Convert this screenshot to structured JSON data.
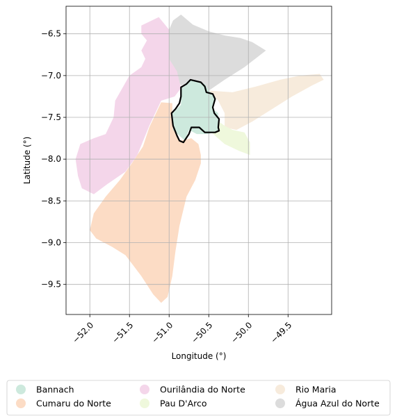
{
  "map": {
    "xlabel": "Longitude (°)",
    "ylabel": "Latitude (°)",
    "xlim": [
      -52.3,
      -48.95
    ],
    "ylim": [
      -9.86,
      -6.17
    ],
    "x_ticks": [
      {
        "value": -52.0,
        "label": "−52.0"
      },
      {
        "value": -51.5,
        "label": "−51.5"
      },
      {
        "value": -51.0,
        "label": "−51.0"
      },
      {
        "value": -50.5,
        "label": "−50.5"
      },
      {
        "value": -50.0,
        "label": "−50.0"
      },
      {
        "value": -49.5,
        "label": "−49.5"
      }
    ],
    "y_ticks": [
      {
        "value": -6.5,
        "label": "−6.5"
      },
      {
        "value": -7.0,
        "label": "−7.0"
      },
      {
        "value": -7.5,
        "label": "−7.5"
      },
      {
        "value": -8.0,
        "label": "−8.0"
      },
      {
        "value": -8.5,
        "label": "−8.5"
      },
      {
        "value": -9.0,
        "label": "−9.0"
      },
      {
        "value": -9.5,
        "label": "−9.5"
      }
    ],
    "grid": true,
    "regions": [
      {
        "name": "Água Azul do Norte",
        "color": "#dcdcdc",
        "coords": [
          [
            -50.95,
            -6.34
          ],
          [
            -50.85,
            -6.27
          ],
          [
            -50.7,
            -6.39
          ],
          [
            -50.5,
            -6.47
          ],
          [
            -50.3,
            -6.52
          ],
          [
            -50.1,
            -6.55
          ],
          [
            -49.95,
            -6.6
          ],
          [
            -49.78,
            -6.7
          ],
          [
            -50.05,
            -6.9
          ],
          [
            -50.3,
            -7.05
          ],
          [
            -50.5,
            -7.18
          ],
          [
            -50.62,
            -7.13
          ],
          [
            -50.75,
            -7.08
          ],
          [
            -50.85,
            -7.12
          ],
          [
            -50.95,
            -6.95
          ],
          [
            -51.0,
            -6.8
          ],
          [
            -51.02,
            -6.6
          ],
          [
            -51.0,
            -6.45
          ]
        ]
      },
      {
        "name": "Ourilândia do Norte",
        "color": "#f4d6ea",
        "coords": [
          [
            -51.13,
            -6.3
          ],
          [
            -51.0,
            -6.45
          ],
          [
            -51.0,
            -6.8
          ],
          [
            -50.9,
            -6.95
          ],
          [
            -50.85,
            -7.15
          ],
          [
            -50.93,
            -7.25
          ],
          [
            -51.1,
            -7.3
          ],
          [
            -51.25,
            -7.6
          ],
          [
            -51.4,
            -7.95
          ],
          [
            -51.55,
            -8.15
          ],
          [
            -51.78,
            -8.3
          ],
          [
            -51.95,
            -8.42
          ],
          [
            -52.1,
            -8.35
          ],
          [
            -52.15,
            -8.2
          ],
          [
            -52.18,
            -8.0
          ],
          [
            -52.12,
            -7.82
          ],
          [
            -51.95,
            -7.75
          ],
          [
            -51.8,
            -7.7
          ],
          [
            -51.7,
            -7.5
          ],
          [
            -51.68,
            -7.3
          ],
          [
            -51.5,
            -7.0
          ],
          [
            -51.35,
            -6.9
          ],
          [
            -51.3,
            -6.8
          ],
          [
            -51.35,
            -6.7
          ],
          [
            -51.28,
            -6.58
          ],
          [
            -51.35,
            -6.5
          ],
          [
            -51.35,
            -6.4
          ]
        ]
      },
      {
        "name": "Cumaru do Norte",
        "color": "#fcdcc5",
        "coords": [
          [
            -51.1,
            -7.32
          ],
          [
            -50.96,
            -7.33
          ],
          [
            -50.96,
            -7.6
          ],
          [
            -50.86,
            -7.78
          ],
          [
            -50.72,
            -7.75
          ],
          [
            -50.63,
            -7.82
          ],
          [
            -50.6,
            -7.95
          ],
          [
            -50.6,
            -8.05
          ],
          [
            -50.67,
            -8.25
          ],
          [
            -50.78,
            -8.45
          ],
          [
            -50.87,
            -8.8
          ],
          [
            -50.92,
            -9.1
          ],
          [
            -50.96,
            -9.4
          ],
          [
            -51.02,
            -9.65
          ],
          [
            -51.1,
            -9.72
          ],
          [
            -51.2,
            -9.62
          ],
          [
            -51.35,
            -9.4
          ],
          [
            -51.55,
            -9.15
          ],
          [
            -51.72,
            -9.05
          ],
          [
            -51.92,
            -8.95
          ],
          [
            -52.0,
            -8.85
          ],
          [
            -51.95,
            -8.65
          ],
          [
            -51.8,
            -8.45
          ],
          [
            -51.62,
            -8.25
          ],
          [
            -51.47,
            -8.05
          ],
          [
            -51.33,
            -7.85
          ],
          [
            -51.25,
            -7.62
          ]
        ]
      },
      {
        "name": "Rio Maria",
        "color": "#f7ebdc",
        "coords": [
          [
            -50.5,
            -7.18
          ],
          [
            -50.38,
            -7.3
          ],
          [
            -50.3,
            -7.45
          ],
          [
            -50.3,
            -7.62
          ],
          [
            -50.15,
            -7.65
          ],
          [
            -49.95,
            -7.55
          ],
          [
            -49.7,
            -7.4
          ],
          [
            -49.45,
            -7.25
          ],
          [
            -49.2,
            -7.12
          ],
          [
            -49.05,
            -7.05
          ],
          [
            -49.1,
            -6.98
          ],
          [
            -49.35,
            -7.0
          ],
          [
            -49.6,
            -7.05
          ],
          [
            -49.9,
            -7.13
          ],
          [
            -50.2,
            -7.2
          ]
        ]
      },
      {
        "name": "Pau D'Arco",
        "color": "#eff8dc",
        "coords": [
          [
            -50.45,
            -7.5
          ],
          [
            -50.3,
            -7.6
          ],
          [
            -50.2,
            -7.65
          ],
          [
            -50.05,
            -7.68
          ],
          [
            -49.98,
            -7.8
          ],
          [
            -49.98,
            -7.95
          ],
          [
            -50.12,
            -7.9
          ],
          [
            -50.3,
            -7.82
          ],
          [
            -50.42,
            -7.72
          ],
          [
            -50.5,
            -7.65
          ]
        ]
      },
      {
        "name": "Bannach",
        "color": "#cde9dd",
        "coords": [
          [
            -50.75,
            -7.05
          ],
          [
            -50.55,
            -7.1
          ],
          [
            -50.5,
            -7.18
          ],
          [
            -50.42,
            -7.25
          ],
          [
            -50.45,
            -7.4
          ],
          [
            -50.38,
            -7.45
          ],
          [
            -50.37,
            -7.65
          ],
          [
            -50.5,
            -7.7
          ],
          [
            -50.65,
            -7.7
          ],
          [
            -50.75,
            -7.65
          ],
          [
            -50.8,
            -7.78
          ],
          [
            -50.95,
            -7.65
          ],
          [
            -50.96,
            -7.45
          ],
          [
            -50.85,
            -7.35
          ],
          [
            -50.85,
            -7.15
          ]
        ]
      }
    ],
    "highlight": {
      "name": "Bannach boundary",
      "color": "#000000",
      "coords": [
        [
          -50.85,
          -7.14
        ],
        [
          -50.78,
          -7.1
        ],
        [
          -50.73,
          -7.05
        ],
        [
          -50.6,
          -7.08
        ],
        [
          -50.55,
          -7.13
        ],
        [
          -50.53,
          -7.2
        ],
        [
          -50.45,
          -7.22
        ],
        [
          -50.42,
          -7.28
        ],
        [
          -50.45,
          -7.38
        ],
        [
          -50.43,
          -7.45
        ],
        [
          -50.37,
          -7.52
        ],
        [
          -50.38,
          -7.62
        ],
        [
          -50.37,
          -7.66
        ],
        [
          -50.42,
          -7.68
        ],
        [
          -50.55,
          -7.68
        ],
        [
          -50.62,
          -7.62
        ],
        [
          -50.72,
          -7.62
        ],
        [
          -50.75,
          -7.7
        ],
        [
          -50.82,
          -7.8
        ],
        [
          -50.87,
          -7.78
        ],
        [
          -50.9,
          -7.72
        ],
        [
          -50.95,
          -7.6
        ],
        [
          -50.97,
          -7.45
        ],
        [
          -50.92,
          -7.4
        ],
        [
          -50.87,
          -7.33
        ],
        [
          -50.85,
          -7.25
        ]
      ]
    }
  },
  "legend": {
    "items": [
      {
        "label": "Bannach",
        "color": "#cde9dd"
      },
      {
        "label": "Cumaru do Norte",
        "color": "#fcdcc5"
      },
      {
        "label": "Ourilândia do Norte",
        "color": "#f4d6ea"
      },
      {
        "label": "Pau D'Arco",
        "color": "#eff8dc"
      },
      {
        "label": "Rio Maria",
        "color": "#f7ebdc"
      },
      {
        "label": "Água Azul do Norte",
        "color": "#dcdcdc"
      }
    ]
  }
}
